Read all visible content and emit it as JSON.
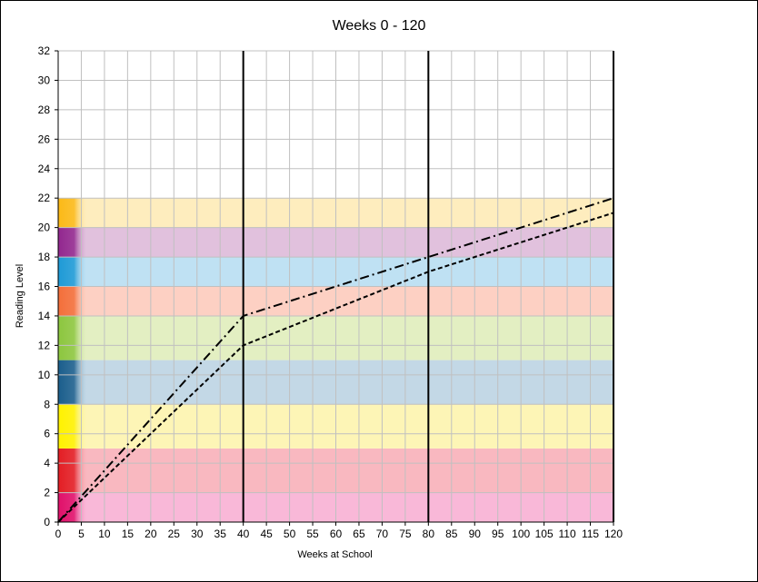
{
  "chart_data": {
    "type": "line",
    "title": "Weeks 0 - 120",
    "xlabel": "Weeks at School",
    "ylabel": "Reading Level",
    "xlim": [
      0,
      120
    ],
    "ylim": [
      0,
      32
    ],
    "xticks": [
      0,
      5,
      10,
      15,
      20,
      25,
      30,
      35,
      40,
      45,
      50,
      55,
      60,
      65,
      70,
      75,
      80,
      85,
      90,
      95,
      100,
      105,
      110,
      115,
      120
    ],
    "yticks": [
      0,
      2,
      4,
      6,
      8,
      10,
      12,
      14,
      16,
      18,
      20,
      22,
      24,
      26,
      28,
      30,
      32
    ],
    "grid": true,
    "vertical_lines_x": [
      40,
      80,
      120
    ],
    "bands": [
      {
        "from": 0,
        "to": 2,
        "color": "#f9b8d8",
        "key_color": "#e0106a"
      },
      {
        "from": 2,
        "to": 5,
        "color": "#f9b8c0",
        "key_color": "#e31e24"
      },
      {
        "from": 5,
        "to": 8,
        "color": "#fdf5b6",
        "key_color": "#fff200"
      },
      {
        "from": 8,
        "to": 11,
        "color": "#c3d8e6",
        "key_color": "#1b5e8c"
      },
      {
        "from": 11,
        "to": 14,
        "color": "#e3efc2",
        "key_color": "#8cc63f"
      },
      {
        "from": 14,
        "to": 16,
        "color": "#fdd0c3",
        "key_color": "#f36f3a"
      },
      {
        "from": 16,
        "to": 18,
        "color": "#bfe1f3",
        "key_color": "#1e9ad6"
      },
      {
        "from": 18,
        "to": 20,
        "color": "#e1c1dd",
        "key_color": "#92278f"
      },
      {
        "from": 20,
        "to": 22,
        "color": "#feedbe",
        "key_color": "#fbb917"
      }
    ],
    "series": [
      {
        "style": "dash-dot",
        "color": "#000000",
        "x": [
          0,
          40,
          80,
          120
        ],
        "y": [
          0,
          14,
          18,
          22
        ]
      },
      {
        "style": "dashed",
        "color": "#000000",
        "x": [
          0,
          40,
          80,
          120
        ],
        "y": [
          0,
          12,
          17,
          21
        ]
      }
    ]
  }
}
